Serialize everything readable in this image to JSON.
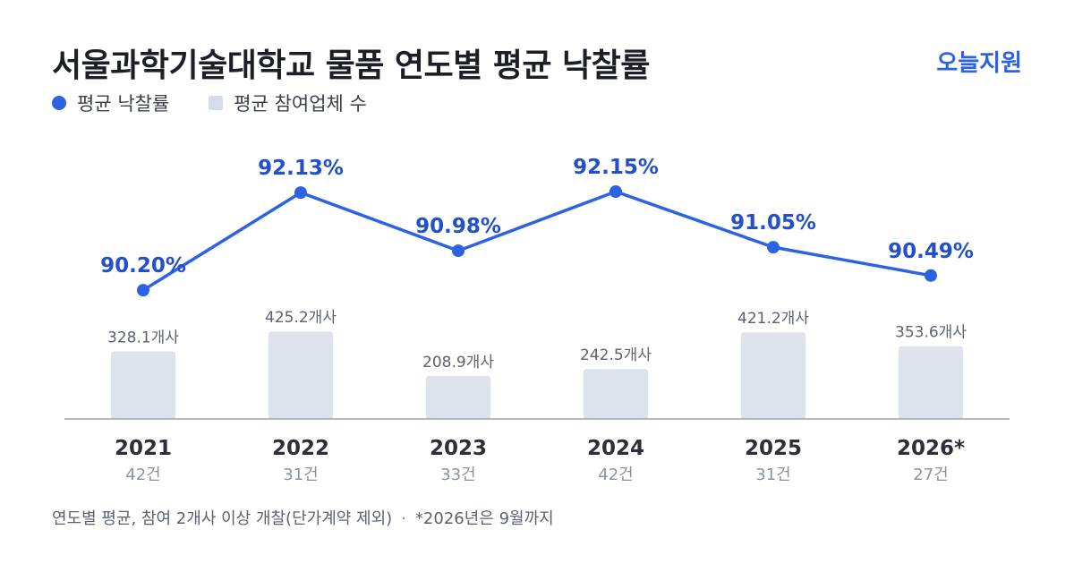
{
  "title": "서울과학기술대학교 물품 연도별 평균 낙찰률",
  "brand": "오늘지원",
  "legend": {
    "line_label": "평균 낙찰률",
    "bar_label": "평균 참여업체 수"
  },
  "footnote": {
    "main": "연도별 평균, 참여 2개사 이상 개찰(단가계약 제외)",
    "separator": "·",
    "note": "*2026년은 9월까지"
  },
  "colors": {
    "line": "#2b63e3",
    "bar": "#dfe4ec",
    "axis": "#9aa3b2"
  },
  "chart_data": {
    "type": "bar+line",
    "categories": [
      "2021",
      "2022",
      "2023",
      "2024",
      "2025",
      "2026*"
    ],
    "counts": [
      "42건",
      "31건",
      "33건",
      "42건",
      "31건",
      "27건"
    ],
    "series": [
      {
        "name": "평균 낙찰률",
        "type": "line",
        "values": [
          90.2,
          92.13,
          90.98,
          92.15,
          91.05,
          90.49
        ],
        "labels": [
          "90.20%",
          "92.13%",
          "90.98%",
          "92.15%",
          "91.05%",
          "90.49%"
        ]
      },
      {
        "name": "평균 참여업체 수",
        "type": "bar",
        "values": [
          328.1,
          425.2,
          208.9,
          242.5,
          421.2,
          353.6
        ],
        "labels": [
          "328.1개사",
          "425.2개사",
          "208.9개사",
          "242.5개사",
          "421.2개사",
          "353.6개사"
        ]
      }
    ]
  }
}
